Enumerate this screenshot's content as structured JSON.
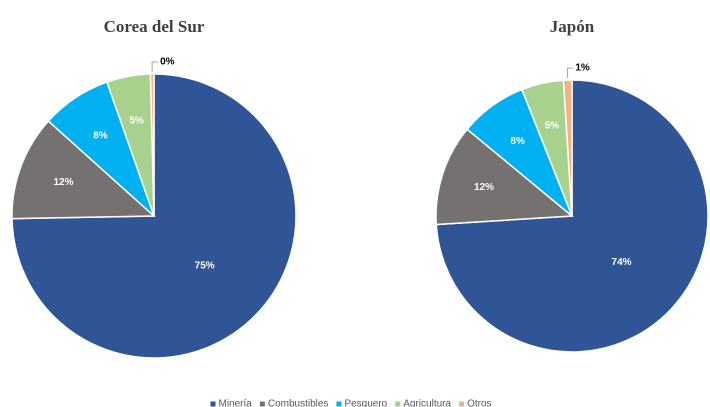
{
  "chart_data": [
    {
      "type": "pie",
      "title": "Corea del Sur",
      "categories": [
        "Minería",
        "Combustibles",
        "Pesquero",
        "Agricultura",
        "Otros"
      ],
      "values": [
        75,
        12,
        8,
        5,
        0.4
      ],
      "value_labels": [
        "75%",
        "12%",
        "8%",
        "5%",
        "0%"
      ],
      "colors": [
        "#2f5597",
        "#767171",
        "#00b0f0",
        "#a9d18e",
        "#f4b183"
      ]
    },
    {
      "type": "pie",
      "title": "Japón",
      "categories": [
        "Minería",
        "Combustibles",
        "Pesquero",
        "Agricultura",
        "Otros"
      ],
      "values": [
        74,
        12,
        8,
        5,
        1
      ],
      "value_labels": [
        "74%",
        "12%",
        "8%",
        "5%",
        "1%"
      ],
      "colors": [
        "#2f5597",
        "#767171",
        "#00b0f0",
        "#a9d18e",
        "#f4b183"
      ]
    }
  ]
}
